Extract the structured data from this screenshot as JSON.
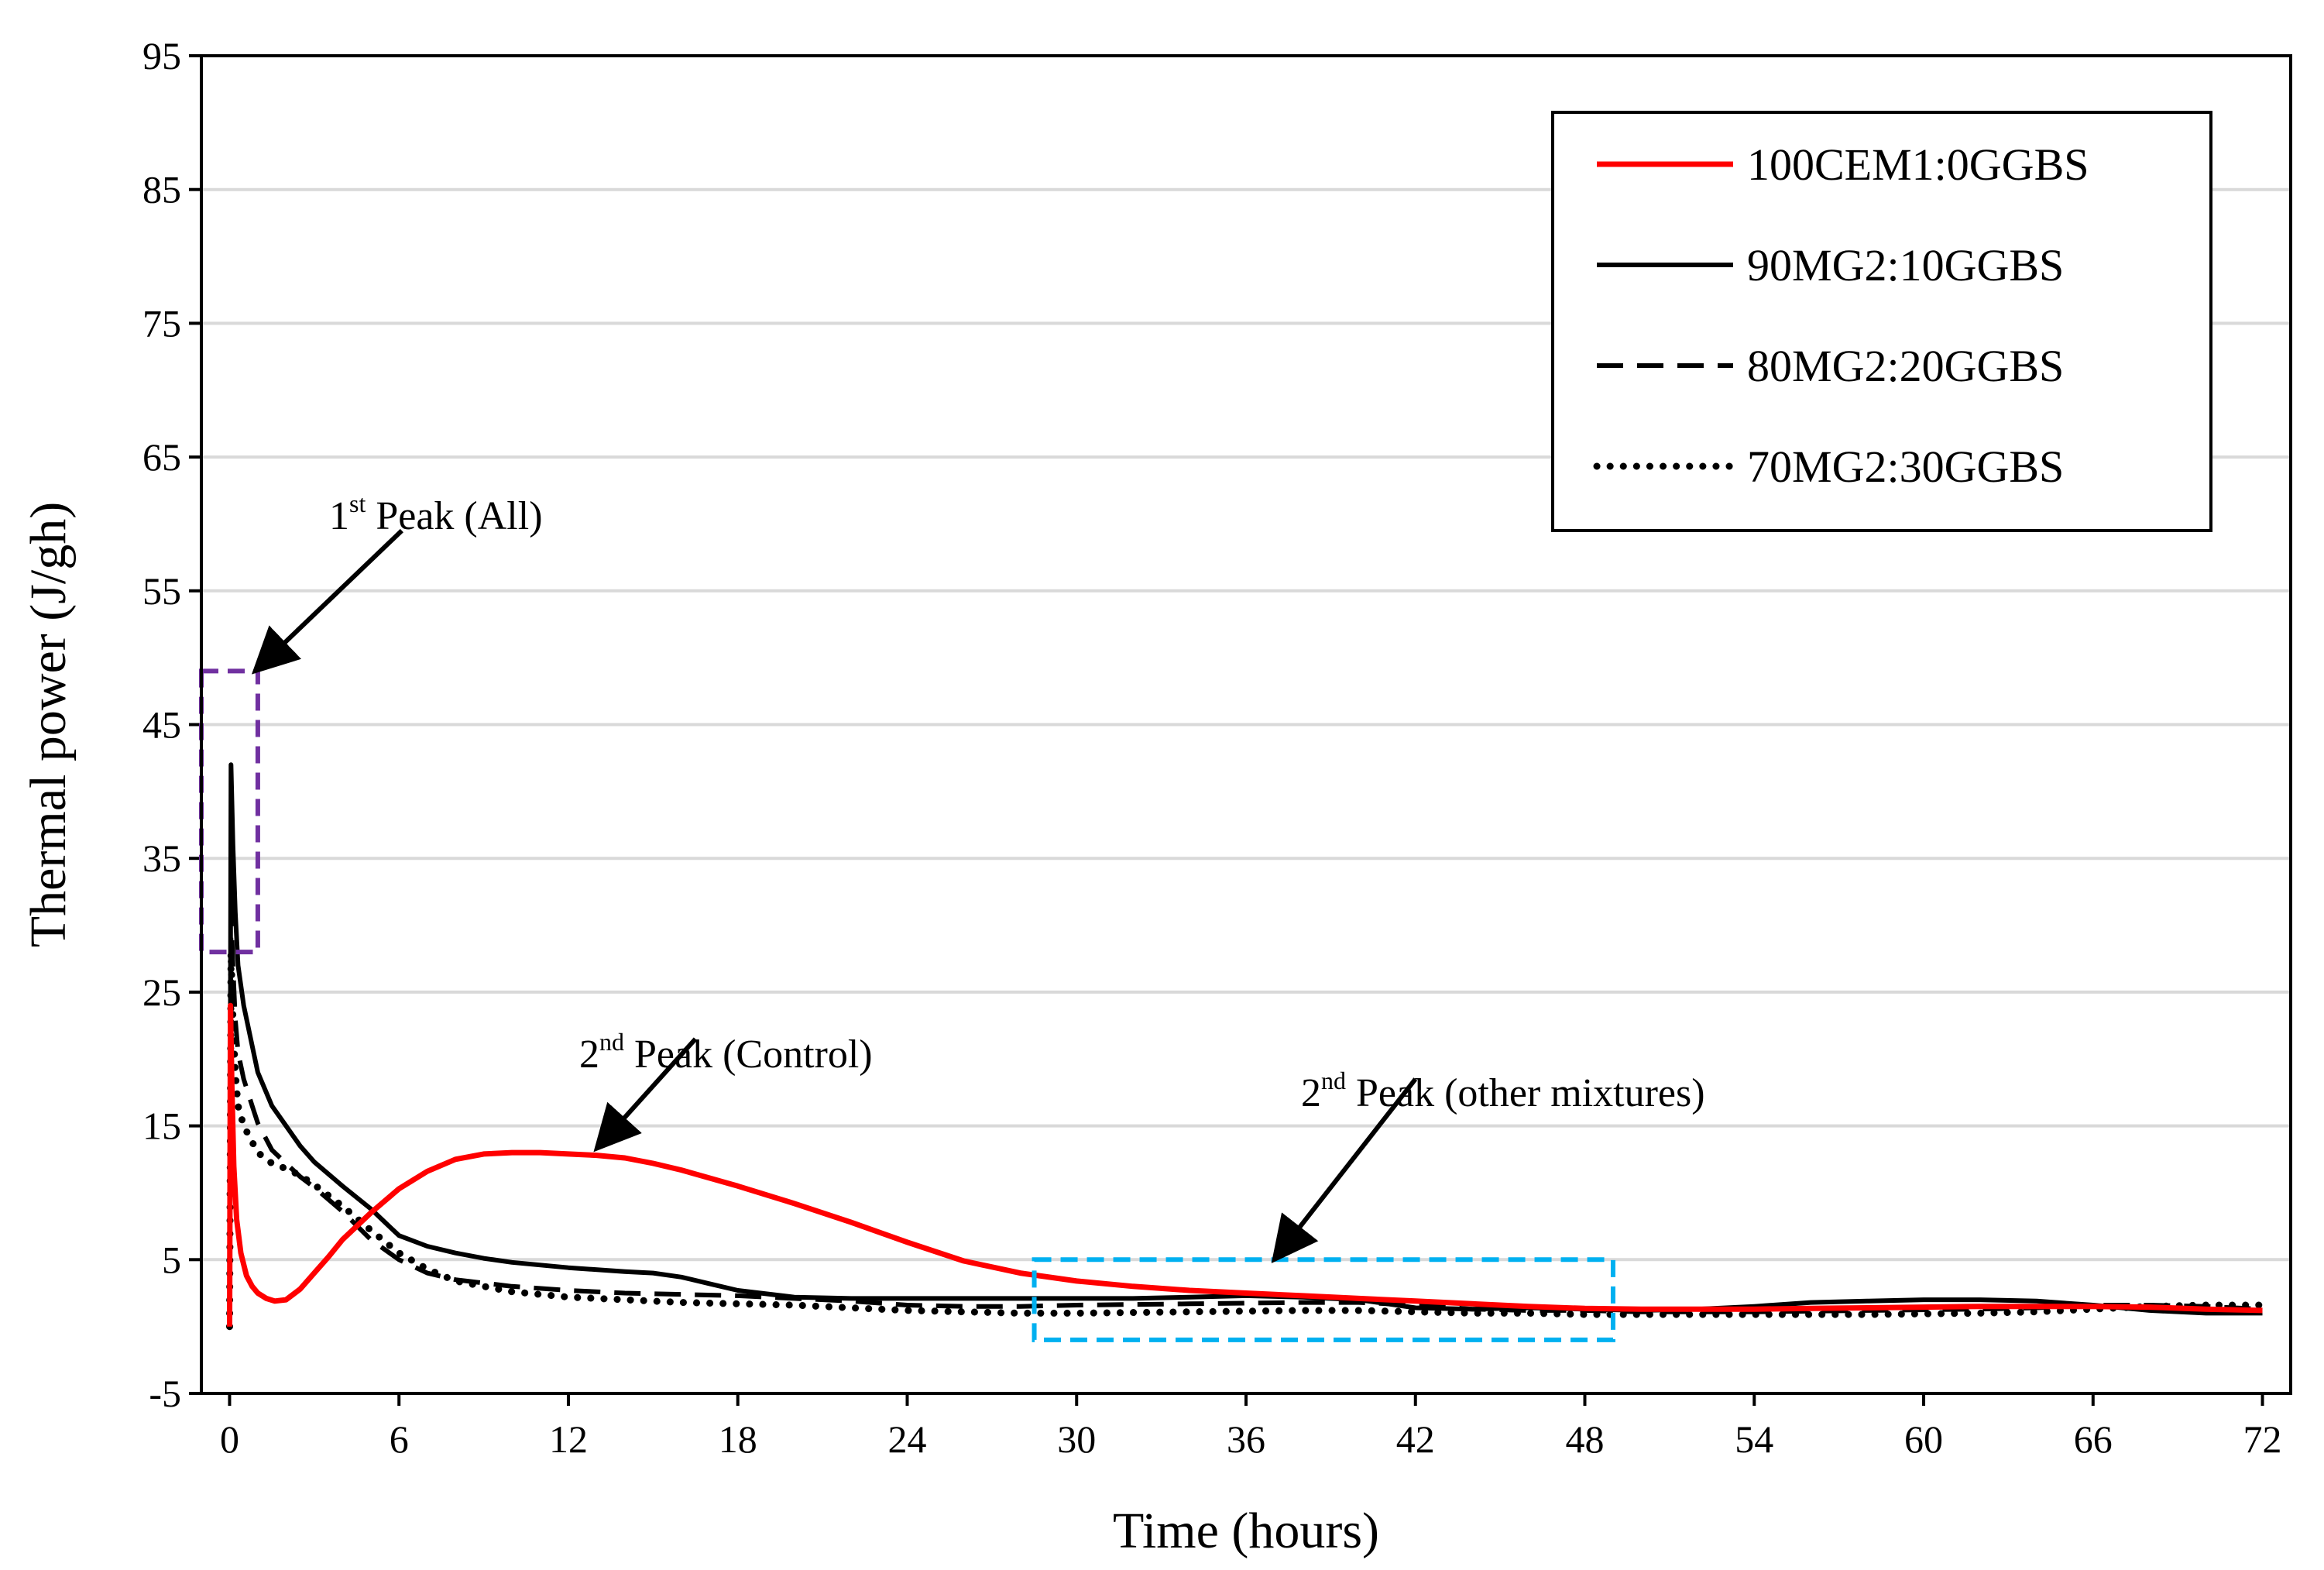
{
  "chart_data": {
    "type": "line",
    "xlabel": "Time (hours)",
    "ylabel": "Thermal power (J/gh)",
    "xlim": [
      -1,
      73
    ],
    "ylim": [
      -5,
      95
    ],
    "xticks": [
      0,
      6,
      12,
      18,
      24,
      30,
      36,
      42,
      48,
      54,
      60,
      66,
      72
    ],
    "yticks": [
      -5,
      5,
      15,
      25,
      35,
      45,
      55,
      65,
      75,
      85,
      95
    ],
    "grid": "horizontal",
    "legend_position": "top-right",
    "series": [
      {
        "name": "100CEM1:0GGBS",
        "color": "#ff0000",
        "style": "solid",
        "x": [
          0,
          0.03,
          0.08,
          0.15,
          0.25,
          0.4,
          0.6,
          0.8,
          1.0,
          1.3,
          1.6,
          2.0,
          2.5,
          3.0,
          3.5,
          4,
          5,
          6,
          7,
          8,
          9,
          10,
          11,
          12,
          13,
          14,
          15,
          16,
          18,
          20,
          22,
          24,
          26,
          28,
          30,
          32,
          34,
          36,
          38,
          40,
          42,
          44,
          46,
          48,
          50,
          52,
          54,
          56,
          58,
          60,
          62,
          64,
          66,
          68,
          70,
          72
        ],
        "y": [
          0,
          24,
          18,
          12,
          8,
          5.5,
          3.8,
          3.0,
          2.5,
          2.1,
          1.9,
          2.0,
          2.8,
          4.0,
          5.2,
          6.5,
          8.5,
          10.3,
          11.6,
          12.5,
          12.9,
          13.0,
          13.0,
          12.9,
          12.8,
          12.6,
          12.2,
          11.7,
          10.5,
          9.2,
          7.8,
          6.3,
          4.9,
          4.0,
          3.4,
          3.0,
          2.7,
          2.5,
          2.3,
          2.1,
          1.9,
          1.7,
          1.5,
          1.35,
          1.3,
          1.3,
          1.3,
          1.35,
          1.4,
          1.45,
          1.5,
          1.5,
          1.5,
          1.45,
          1.3,
          1.2
        ]
      },
      {
        "name": "90MG2:10GGBS",
        "color": "#000000",
        "style": "solid",
        "x": [
          0,
          0.05,
          0.12,
          0.2,
          0.3,
          0.5,
          0.8,
          1.0,
          1.5,
          2.0,
          2.5,
          3,
          4,
          5,
          6,
          7,
          8,
          9,
          10,
          12,
          14,
          15,
          16,
          17,
          18,
          20,
          22,
          24,
          26,
          28,
          30,
          32,
          34,
          36,
          38,
          40,
          42,
          44,
          46,
          48,
          50,
          52,
          54,
          56,
          58,
          60,
          62,
          64,
          66,
          68,
          70,
          72
        ],
        "y": [
          0,
          42,
          36,
          31,
          27,
          24,
          21,
          19,
          16.5,
          15,
          13.5,
          12.3,
          10.5,
          8.8,
          6.8,
          6.0,
          5.5,
          5.1,
          4.8,
          4.4,
          4.1,
          4.0,
          3.7,
          3.2,
          2.7,
          2.2,
          2.1,
          2.1,
          2.1,
          2.1,
          2.1,
          2.1,
          2.2,
          2.3,
          2.2,
          2.0,
          1.4,
          1.3,
          1.4,
          1.3,
          1.2,
          1.3,
          1.5,
          1.8,
          1.9,
          2.0,
          2.0,
          1.9,
          1.6,
          1.2,
          1.0,
          1.0
        ]
      },
      {
        "name": "80MG2:20GGBS",
        "color": "#000000",
        "style": "dashed",
        "x": [
          0,
          0.05,
          0.12,
          0.2,
          0.3,
          0.5,
          0.8,
          1.0,
          1.5,
          2.0,
          2.5,
          3,
          4,
          5,
          6,
          7,
          8,
          10,
          12,
          14,
          16,
          18,
          20,
          22,
          24,
          26,
          28,
          30,
          34,
          38,
          40,
          42,
          44,
          46,
          48,
          50,
          54,
          58,
          62,
          64,
          66,
          68,
          70,
          72
        ],
        "y": [
          0,
          31,
          27,
          23,
          20.5,
          18.5,
          16.5,
          15.2,
          13.2,
          12.2,
          11.2,
          10.4,
          8.6,
          6.5,
          5.0,
          4.0,
          3.5,
          3.0,
          2.7,
          2.5,
          2.4,
          2.3,
          2.1,
          1.9,
          1.6,
          1.5,
          1.5,
          1.6,
          1.7,
          1.8,
          1.8,
          1.6,
          1.3,
          1.2,
          1.2,
          1.1,
          1.1,
          1.2,
          1.3,
          1.4,
          1.6,
          1.6,
          1.5,
          1.3
        ]
      },
      {
        "name": "70MG2:30GGBS",
        "color": "#000000",
        "style": "dotted",
        "x": [
          0,
          0.05,
          0.12,
          0.2,
          0.3,
          0.5,
          0.8,
          1.0,
          1.5,
          2.0,
          2.5,
          3,
          4,
          5,
          6,
          7,
          8,
          10,
          12,
          14,
          16,
          18,
          20,
          22,
          24,
          26,
          28,
          30,
          34,
          38,
          40,
          42,
          44,
          46,
          48,
          50,
          54,
          58,
          62,
          64,
          66,
          68,
          70,
          72
        ],
        "y": [
          0,
          28,
          23,
          19,
          16.5,
          15,
          13.8,
          13,
          12.2,
          11.8,
          11.3,
          10.6,
          9.0,
          7.2,
          5.5,
          4.3,
          3.4,
          2.6,
          2.2,
          2.0,
          1.8,
          1.7,
          1.6,
          1.4,
          1.2,
          1.1,
          1.0,
          1.0,
          1.1,
          1.2,
          1.2,
          1.1,
          1.0,
          1.0,
          0.9,
          0.9,
          0.9,
          0.9,
          1.0,
          1.1,
          1.3,
          1.5,
          1.6,
          1.6
        ]
      }
    ],
    "annotations": [
      {
        "main": "1",
        "sup": "st",
        "rest": " Peak (All)",
        "arrow_tail": [
          6.1,
          59.5
        ],
        "arrow_head": [
          0.9,
          49
        ],
        "box_color": "#7030a0",
        "box_x": [
          -1,
          1
        ],
        "box_y": [
          28,
          49
        ]
      },
      {
        "main": "2",
        "sup": "nd",
        "rest": " Peak (Control)",
        "arrow_tail": [
          16.5,
          21.5
        ],
        "arrow_head": [
          13,
          13.3
        ]
      },
      {
        "main": "2",
        "sup": "nd",
        "rest": " Peak (other mixtures)",
        "arrow_tail": [
          42,
          18.5
        ],
        "arrow_head": [
          37,
          5
        ],
        "box_color": "#00b0f0",
        "box_x": [
          28.5,
          49
        ],
        "box_y": [
          -1,
          5
        ]
      }
    ]
  }
}
